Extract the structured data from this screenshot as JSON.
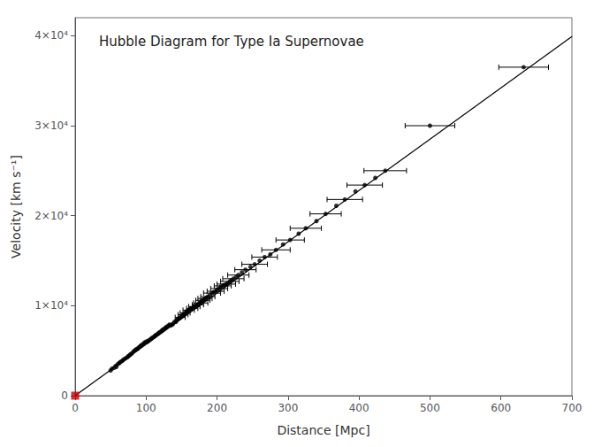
{
  "chart_data": {
    "type": "scatter",
    "title": "Hubble Diagram for Type Ia Supernovae",
    "xlabel": "Distance [Mpc]",
    "ylabel": "Velocity [km s⁻¹]",
    "xlim": [
      0,
      700
    ],
    "ylim": [
      0,
      42000
    ],
    "xticks": [
      0,
      100,
      200,
      300,
      400,
      500,
      600,
      700
    ],
    "yticks": [
      0,
      {
        "value": 10000,
        "label": "1×10⁴"
      },
      {
        "value": 20000,
        "label": "2×10⁴"
      },
      {
        "value": 30000,
        "label": "3×10⁴"
      },
      {
        "value": 40000,
        "label": "4×10⁴"
      }
    ],
    "grid": false,
    "series": [
      {
        "type": "line",
        "color": "#000000",
        "line_style": "solid",
        "x": [
          0,
          700
        ],
        "values": [
          0,
          39900
        ]
      },
      {
        "type": "scatter",
        "color": "#000000",
        "marker": "circle",
        "x": [
          50,
          52,
          55,
          57,
          58,
          60,
          62,
          63,
          65,
          67,
          68,
          70,
          72,
          74,
          75,
          77,
          78,
          80,
          82,
          84,
          85,
          87,
          88,
          90,
          92,
          93,
          95,
          97,
          98,
          100,
          102,
          103,
          105,
          107,
          108,
          110,
          112,
          113,
          115,
          117,
          118,
          120,
          122,
          123,
          125,
          127,
          128,
          130,
          132,
          133,
          135,
          137,
          138,
          140,
          142,
          143,
          145,
          147,
          148,
          150,
          152,
          153,
          155,
          157,
          158,
          160,
          162,
          163,
          165,
          167,
          168,
          170,
          172,
          173,
          175,
          177,
          178,
          180,
          182,
          183,
          185,
          187,
          190,
          193,
          195,
          198,
          200,
          203,
          205,
          208,
          210,
          213,
          215,
          218,
          220,
          223,
          227,
          230,
          235,
          240,
          247,
          253,
          260,
          267,
          275,
          283,
          293,
          303,
          315,
          325,
          340,
          353,
          368,
          380,
          395,
          408,
          423,
          437,
          500,
          632
        ],
        "values": [
          2800,
          3000,
          3100,
          3300,
          3200,
          3500,
          3600,
          3700,
          3800,
          3900,
          4000,
          4100,
          4200,
          4300,
          4400,
          4500,
          4600,
          4700,
          4900,
          5000,
          5100,
          5200,
          5200,
          5400,
          5500,
          5600,
          5700,
          5800,
          5900,
          6000,
          6000,
          6100,
          6200,
          6300,
          6400,
          6500,
          6600,
          6700,
          6800,
          6900,
          7000,
          7100,
          7200,
          7300,
          7400,
          7500,
          7600,
          7700,
          7800,
          7900,
          7800,
          7900,
          8000,
          8200,
          8200,
          8400,
          8500,
          8600,
          8700,
          8800,
          9000,
          9000,
          9200,
          9300,
          9400,
          9500,
          9600,
          9700,
          9700,
          9900,
          9900,
          10000,
          10100,
          10100,
          10300,
          10300,
          10500,
          10600,
          10700,
          10800,
          10900,
          11000,
          11200,
          11400,
          11500,
          11600,
          11800,
          11900,
          12100,
          12200,
          12300,
          12400,
          12500,
          12700,
          12800,
          13000,
          13200,
          13400,
          13700,
          14000,
          14300,
          14600,
          15000,
          15400,
          15700,
          16200,
          16800,
          17300,
          18000,
          18600,
          19400,
          20200,
          21100,
          21800,
          22700,
          23400,
          24200,
          25000,
          30000,
          36500
        ],
        "xerr": [
          0,
          0,
          0,
          0,
          0,
          0,
          0,
          0,
          0,
          0,
          0,
          0,
          0,
          0,
          0,
          0,
          0,
          0,
          0,
          0,
          0,
          0,
          0,
          0,
          0,
          0,
          0,
          0,
          0,
          0,
          0,
          0,
          0,
          0,
          0,
          0,
          0,
          0,
          0,
          0,
          0,
          0,
          0,
          0,
          0,
          0,
          0,
          0,
          0,
          0,
          0,
          0,
          0,
          0,
          0,
          0,
          0,
          0,
          7,
          0,
          7,
          0,
          7,
          0,
          0,
          8,
          0,
          0,
          8,
          0,
          8,
          0,
          0,
          8,
          0,
          10,
          0,
          10,
          0,
          10,
          0,
          10,
          0,
          12,
          0,
          12,
          0,
          12,
          0,
          12,
          0,
          13,
          0,
          13,
          0,
          15,
          0,
          15,
          0,
          15,
          0,
          18,
          0,
          18,
          0,
          20,
          0,
          20,
          0,
          22,
          0,
          22,
          0,
          25,
          0,
          25,
          0,
          30,
          35,
          35
        ]
      },
      {
        "type": "scatter",
        "color": "#cc0000",
        "marker": "square",
        "x": [
          0
        ],
        "values": [
          0
        ]
      }
    ]
  }
}
